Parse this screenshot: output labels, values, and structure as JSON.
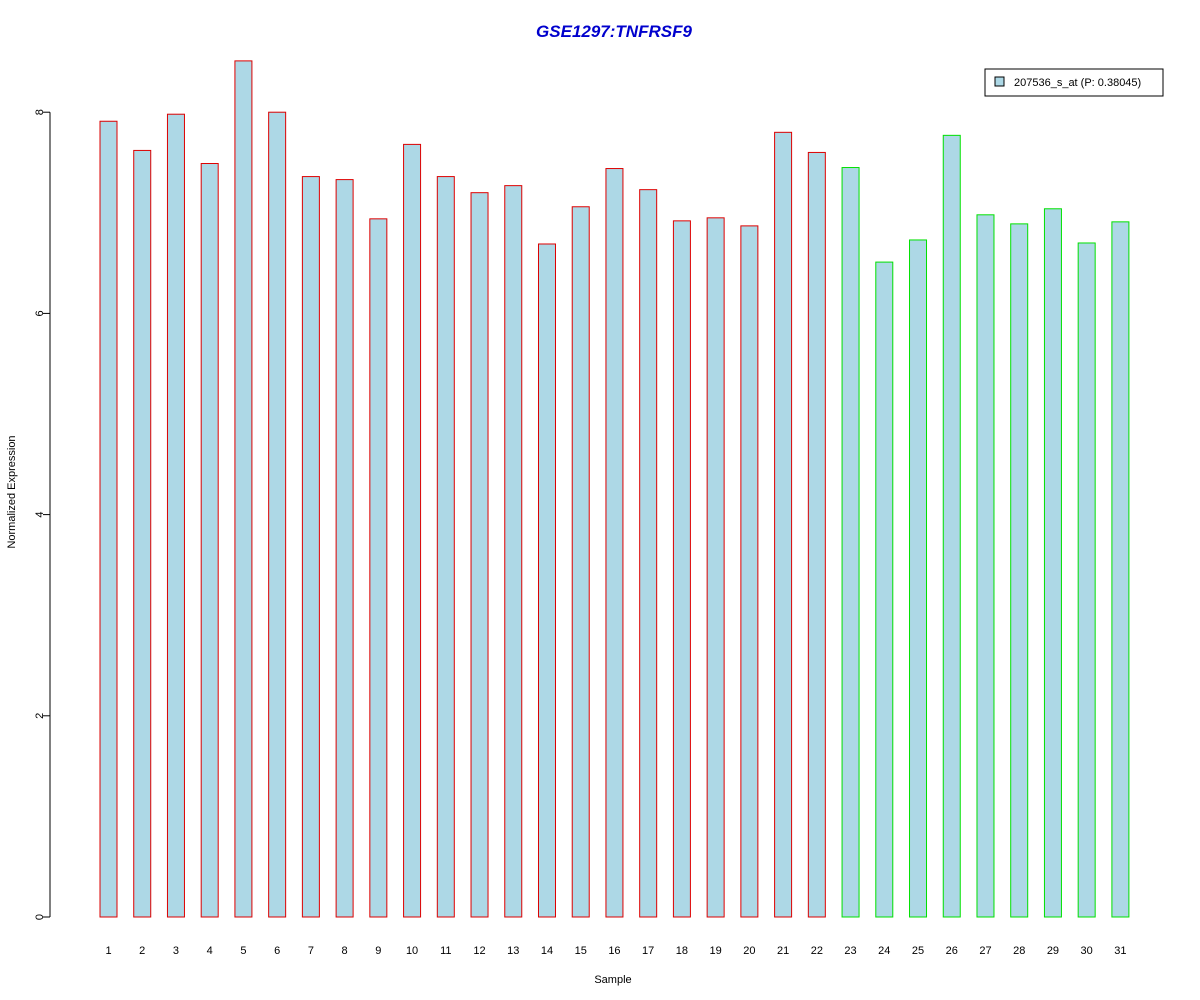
{
  "chart_data": {
    "type": "bar",
    "title": "GSE1297:TNFRSF9",
    "xlabel": "Sample",
    "ylabel": "Normalized Expression",
    "categories": [
      "1",
      "2",
      "3",
      "4",
      "5",
      "6",
      "7",
      "8",
      "9",
      "10",
      "11",
      "12",
      "13",
      "14",
      "15",
      "16",
      "17",
      "18",
      "19",
      "20",
      "21",
      "22",
      "23",
      "24",
      "25",
      "26",
      "27",
      "28",
      "29",
      "30",
      "31"
    ],
    "series": [
      {
        "name": "207536_s_at (P: 0.38045)",
        "values": [
          7.91,
          7.62,
          7.98,
          7.49,
          8.51,
          8.0,
          7.36,
          7.33,
          6.94,
          7.68,
          7.36,
          7.2,
          7.27,
          6.69,
          7.06,
          7.44,
          7.23,
          6.92,
          6.95,
          6.87,
          7.8,
          7.6,
          7.45,
          6.51,
          6.73,
          7.77,
          6.98,
          6.89,
          7.04,
          6.7,
          6.91
        ]
      }
    ],
    "groups": [
      {
        "samples": [
          1,
          22
        ],
        "border_color": "#dd0000"
      },
      {
        "samples": [
          23,
          31
        ],
        "border_color": "#00e000"
      }
    ],
    "yticks": [
      0,
      2,
      4,
      6,
      8
    ],
    "ylim": [
      0,
      8.5
    ],
    "grid": false,
    "legend_position": "top-right",
    "colors": {
      "bar_fill": "#add8e6",
      "title": "#0000cd",
      "axis": "#000000"
    }
  }
}
